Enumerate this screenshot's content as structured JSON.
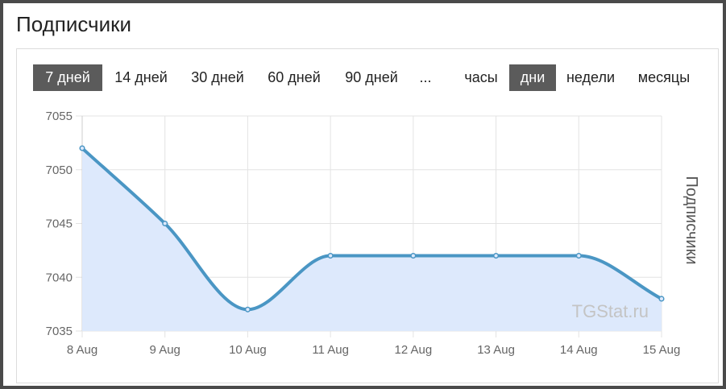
{
  "page_title": "Подписчики",
  "range_tabs": [
    {
      "label": "7 дней",
      "active": true
    },
    {
      "label": "14 дней",
      "active": false
    },
    {
      "label": "30 дней",
      "active": false
    },
    {
      "label": "60 дней",
      "active": false
    },
    {
      "label": "90 дней",
      "active": false
    },
    {
      "label": "...",
      "active": false
    }
  ],
  "unit_tabs": [
    {
      "label": "часы",
      "active": false
    },
    {
      "label": "дни",
      "active": true
    },
    {
      "label": "недели",
      "active": false
    },
    {
      "label": "месяцы",
      "active": false
    }
  ],
  "watermark": "TGStat.ru",
  "colors": {
    "line": "#4a96c4",
    "fill": "#dde9fc",
    "grid": "#e3e3e3",
    "active_tab": "#5b5b5b"
  },
  "chart_data": {
    "type": "line",
    "smooth": true,
    "area_fill": true,
    "categories": [
      "8 Aug",
      "9 Aug",
      "10 Aug",
      "11 Aug",
      "12 Aug",
      "13 Aug",
      "14 Aug",
      "15 Aug"
    ],
    "series": [
      {
        "values": [
          7052,
          7045,
          7037,
          7042,
          7042,
          7042,
          7042,
          7038
        ]
      }
    ],
    "ylabel": "Подписчики",
    "ylabel_position": "right",
    "ylim": [
      7035,
      7055
    ],
    "yticks": [
      7035,
      7040,
      7045,
      7050,
      7055
    ],
    "grid": true
  }
}
